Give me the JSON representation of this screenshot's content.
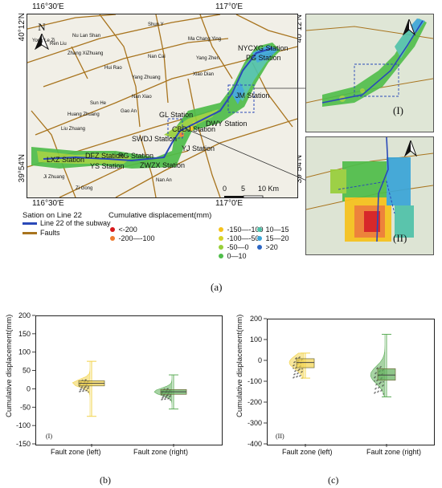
{
  "figure": {
    "panel_a_label": "(a)",
    "panel_b_label": "(b)",
    "panel_c_label": "(c)"
  },
  "map": {
    "coords": {
      "top_left": "116°30′E",
      "top_right": "117°0′E",
      "bottom_left": "116°30′E",
      "bottom_right": "117°0′E",
      "left_top": "40°12′N",
      "left_bottom": "39°54′N",
      "right_top": "40°12′N",
      "right_bottom": "39°54′N"
    },
    "north_label": "N",
    "scale": {
      "labels": [
        "0",
        "5",
        "10 Km"
      ]
    },
    "stations": [
      "NYCXG Station",
      "PG Station",
      "JM Station",
      "GL Station",
      "DWY Station",
      "CBDJ Station",
      "SWDJ Station",
      "YJ Station",
      "DFZ Station",
      "RG Station",
      "YS Station",
      "ZWZX Station",
      "LXZ Station"
    ],
    "inset_labels": [
      "(I)",
      "(II)"
    ],
    "roads": [
      "Nu Lan Shan",
      "Zhang XiZhuang",
      "Ren Liu",
      "Hui Rao",
      "Nan Cai",
      "Yang Zhen",
      "Xiao Dian",
      "Huang Zhuang",
      "Sun He",
      "Gao An",
      "Nan Xiao",
      "Yang Zhuang",
      "Ma Chang Ying",
      "Ji Zhuang",
      "Yong Le Zi",
      "Shun Y",
      "Zi Gong",
      "Nan An",
      "Liu Zhuang"
    ]
  },
  "legend": {
    "station_head": "Sation on Line 22",
    "line22": "Line 22 of the subway",
    "faults": "Faults",
    "disp_head": "Cumulative displacement(mm)",
    "classes": [
      {
        "label": "<-200",
        "color": "#d7191c"
      },
      {
        "label": "-200—-100",
        "color": "#ef7b2f"
      },
      {
        "label": "-150—-100",
        "color": "#f6c21b"
      },
      {
        "label": "-100—-50",
        "color": "#d6d327"
      },
      {
        "label": "-50—0",
        "color": "#98cf3a"
      },
      {
        "label": "0—10",
        "color": "#4fbd4a"
      },
      {
        "label": "10—15",
        "color": "#4fc2a9"
      },
      {
        "label": "15—20",
        "color": "#3aa5d8"
      },
      {
        "label": ">20",
        "color": "#2c65c4"
      }
    ],
    "line_color": "#2a49b8",
    "fault_color": "#a8741e"
  },
  "chart_data": [
    {
      "type": "box",
      "panel": "(b)",
      "inner_label": "(I)",
      "ylabel": "Cumulative displacement(mm)",
      "ylim": [
        -150,
        200
      ],
      "yticks": [
        -150,
        -100,
        -50,
        0,
        50,
        100,
        150,
        200
      ],
      "categories": [
        "Fault zone (left)",
        "Fault zone (right)"
      ],
      "boxes": [
        {
          "name": "Fault zone (left)",
          "min": -75,
          "q1": 8,
          "median": 15,
          "q3": 22,
          "max": 75,
          "color": "#f2d34a"
        },
        {
          "name": "Fault zone (right)",
          "min": -55,
          "q1": -15,
          "median": -8,
          "q3": -2,
          "max": 38,
          "color": "#5fae5a"
        }
      ]
    },
    {
      "type": "box",
      "panel": "(c)",
      "inner_label": "(II)",
      "ylabel": "Cumulative displacement(mm)",
      "ylim": [
        -400,
        200
      ],
      "yticks": [
        -400,
        -300,
        -200,
        -100,
        0,
        100,
        200
      ],
      "categories": [
        "Fault zone (left)",
        "Fault zone (right)"
      ],
      "boxes": [
        {
          "name": "Fault zone (left)",
          "min": -85,
          "q1": -35,
          "median": -10,
          "q3": 8,
          "max": 35,
          "color": "#f2d34a"
        },
        {
          "name": "Fault zone (right)",
          "min": -175,
          "q1": -95,
          "median": -70,
          "q3": -40,
          "max": 125,
          "color": "#5fae5a"
        }
      ]
    }
  ]
}
